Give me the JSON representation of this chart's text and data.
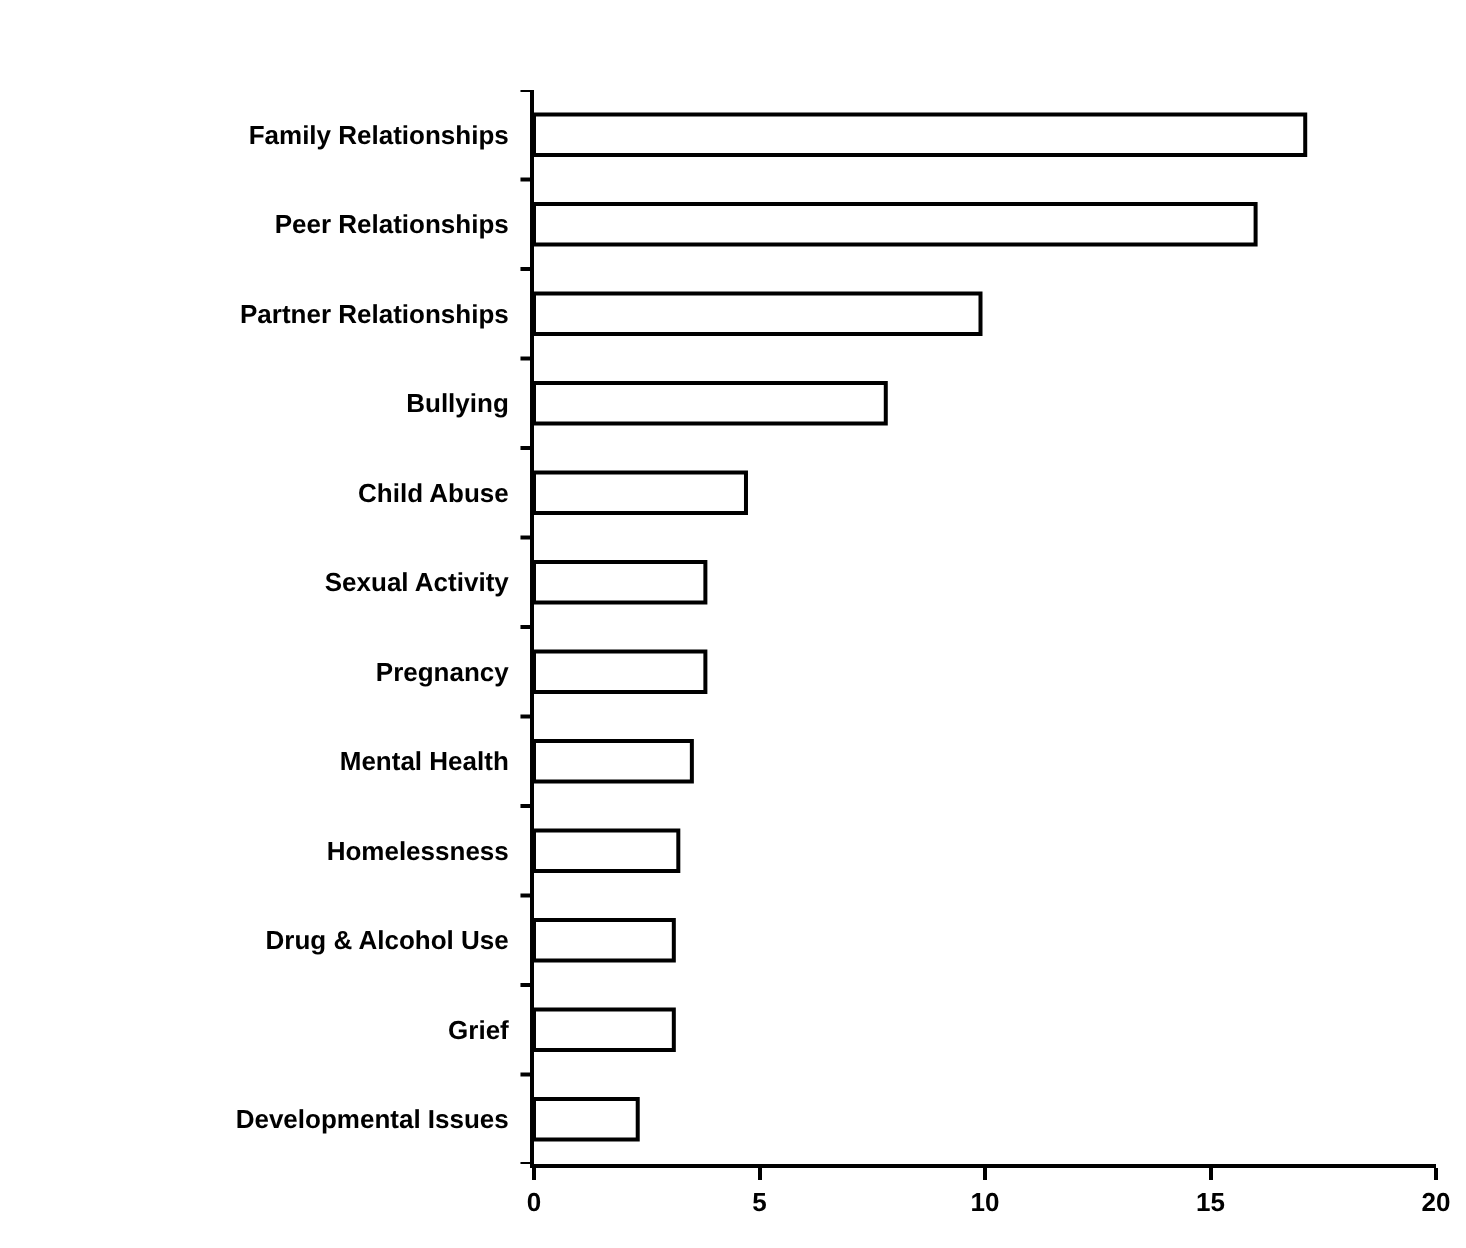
{
  "chart_data": {
    "type": "bar",
    "orientation": "horizontal",
    "categories": [
      "Family Relationships",
      "Peer Relationships",
      "Partner Relationships",
      "Bullying",
      "Child Abuse",
      "Sexual Activity",
      "Pregnancy",
      "Mental Health",
      "Homelessness",
      "Drug & Alcohol Use",
      "Grief",
      "Developmental Issues"
    ],
    "values": [
      17.1,
      16.0,
      9.9,
      7.8,
      4.7,
      3.8,
      3.8,
      3.5,
      3.2,
      3.1,
      3.1,
      2.3
    ],
    "color": "#ffffff",
    "xlim": [
      0,
      20
    ],
    "xticks": [
      0,
      5,
      10,
      15,
      20
    ]
  }
}
